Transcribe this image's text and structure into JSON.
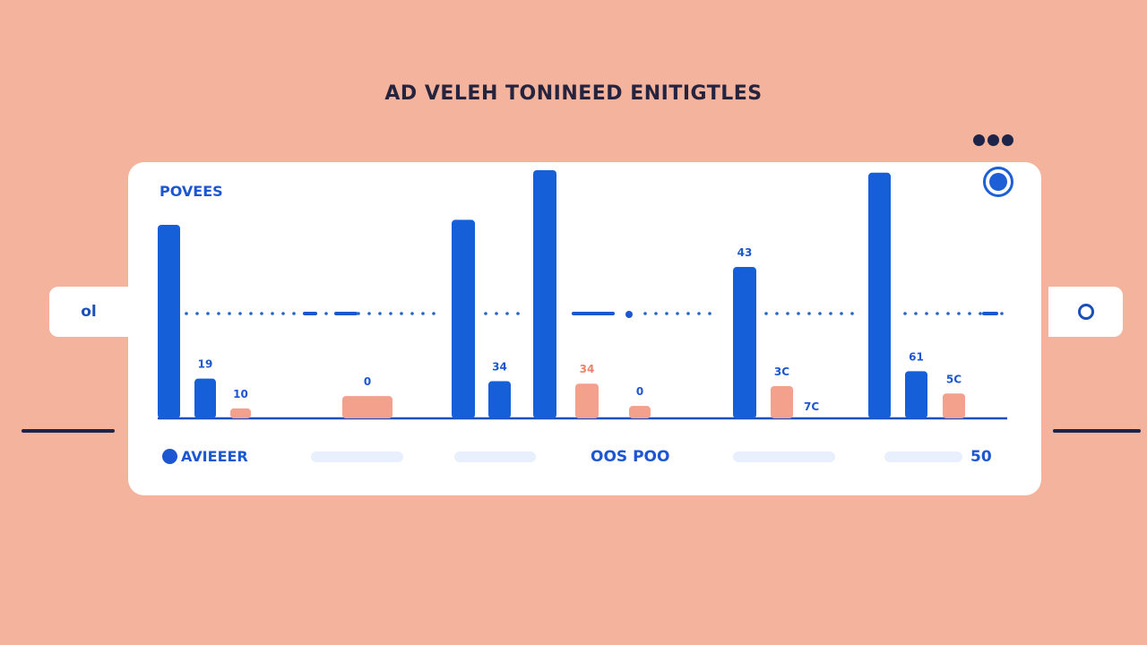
{
  "header": {
    "title": "AD VELEH TONINEED ENITIGTLES"
  },
  "card": {
    "label": "POVEES",
    "side_left_label": "ol",
    "legend_label": "AVIEEER",
    "footer_center": "OOS  POO",
    "footer_right": "50"
  },
  "colors": {
    "background": "#f3b39c",
    "blue": "#1560d8",
    "salmon": "#f3a08c",
    "dark": "#1d2448"
  },
  "icons": {
    "more": "more-dots-icon",
    "close": "circle-button-icon",
    "right_tab": "ring-icon"
  },
  "chart_data": {
    "type": "bar",
    "title": "AD VELEH TONINEED ENITIGTLES",
    "ylim": [
      0,
      100
    ],
    "grid": false,
    "legend": "bottom-left",
    "bars": [
      {
        "color": "blue",
        "value": 78,
        "label": ""
      },
      {
        "color": "blue",
        "value": 16,
        "label": "19"
      },
      {
        "color": "salmon",
        "value": 4,
        "label": "10"
      },
      {
        "color": "salmon",
        "value": 9,
        "label": "0"
      },
      {
        "color": "blue",
        "value": 80,
        "label": ""
      },
      {
        "color": "blue",
        "value": 15,
        "label": "34"
      },
      {
        "color": "blue",
        "value": 100,
        "label": ""
      },
      {
        "color": "salmon",
        "value": 14,
        "label": "34"
      },
      {
        "color": "salmon",
        "value": 5,
        "label": "0"
      },
      {
        "color": "blue",
        "value": 61,
        "label": "43"
      },
      {
        "color": "salmon",
        "value": 13,
        "label": "3C"
      },
      {
        "color": "blue",
        "value": 99,
        "label": ""
      },
      {
        "color": "blue",
        "value": 19,
        "label": "61"
      },
      {
        "color": "salmon",
        "value": 10,
        "label": "5C"
      }
    ],
    "annotations": [
      "7C"
    ]
  }
}
